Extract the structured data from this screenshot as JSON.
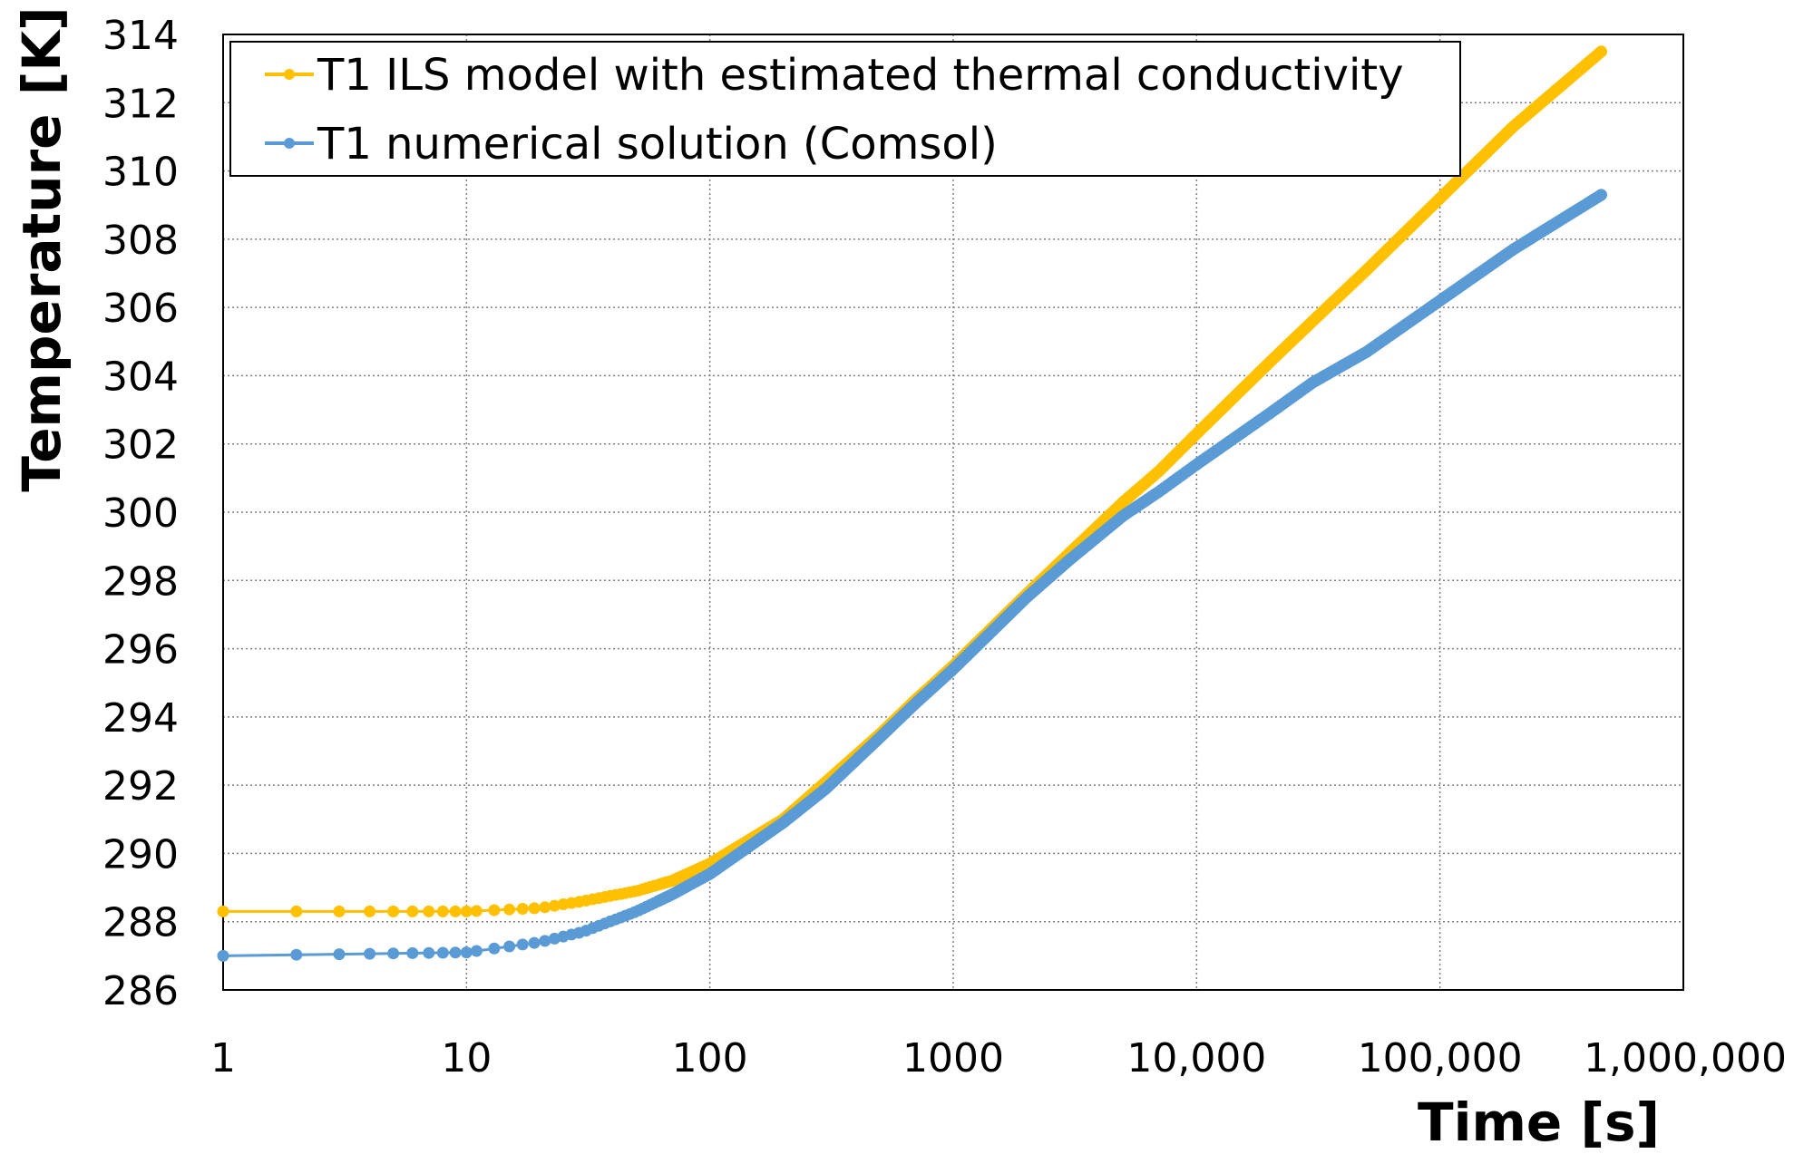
{
  "chart_data": {
    "type": "line",
    "xscale": "log",
    "xlabel": "Time [s]",
    "ylabel": "Temperature [K]",
    "xlim": [
      1,
      1000000
    ],
    "ylim": [
      286,
      314
    ],
    "grid": true,
    "legend_position": "top-left",
    "x_ticks": [
      {
        "value": 1,
        "label": "1"
      },
      {
        "value": 10,
        "label": "10"
      },
      {
        "value": 100,
        "label": "100"
      },
      {
        "value": 1000,
        "label": "1000"
      },
      {
        "value": 10000,
        "label": "10,000"
      },
      {
        "value": 100000,
        "label": "100,000"
      },
      {
        "value": 1000000,
        "label": "1,000,000"
      }
    ],
    "y_ticks": [
      {
        "value": 286,
        "label": "286"
      },
      {
        "value": 288,
        "label": "288"
      },
      {
        "value": 290,
        "label": "290"
      },
      {
        "value": 292,
        "label": "292"
      },
      {
        "value": 294,
        "label": "294"
      },
      {
        "value": 296,
        "label": "296"
      },
      {
        "value": 298,
        "label": "298"
      },
      {
        "value": 300,
        "label": "300"
      },
      {
        "value": 302,
        "label": "302"
      },
      {
        "value": 304,
        "label": "304"
      },
      {
        "value": 306,
        "label": "306"
      },
      {
        "value": 308,
        "label": "308"
      },
      {
        "value": 310,
        "label": "310"
      },
      {
        "value": 312,
        "label": "312"
      },
      {
        "value": 314,
        "label": "314"
      }
    ],
    "series": [
      {
        "name": "T1 ILS model with estimated thermal conductivity",
        "color": "#FFC000",
        "points": [
          [
            1,
            288.3
          ],
          [
            10,
            288.3
          ],
          [
            20,
            288.4
          ],
          [
            30,
            288.6
          ],
          [
            50,
            288.9
          ],
          [
            70,
            289.2
          ],
          [
            100,
            289.7
          ],
          [
            200,
            291.0
          ],
          [
            300,
            292.1
          ],
          [
            500,
            293.5
          ],
          [
            700,
            294.5
          ],
          [
            1000,
            295.5
          ],
          [
            2000,
            297.6
          ],
          [
            3000,
            298.8
          ],
          [
            5000,
            300.3
          ],
          [
            7000,
            301.2
          ],
          [
            10000,
            302.3
          ],
          [
            20000,
            304.4
          ],
          [
            30000,
            305.6
          ],
          [
            50000,
            307.1
          ],
          [
            100000,
            309.2
          ],
          [
            200000,
            311.3
          ],
          [
            460000,
            313.5
          ]
        ]
      },
      {
        "name": "T1 numerical solution (Comsol)",
        "color": "#5B9BD5",
        "points": [
          [
            1,
            287.0
          ],
          [
            10,
            287.1
          ],
          [
            20,
            287.4
          ],
          [
            30,
            287.7
          ],
          [
            50,
            288.3
          ],
          [
            70,
            288.8
          ],
          [
            100,
            289.4
          ],
          [
            200,
            290.9
          ],
          [
            300,
            291.9
          ],
          [
            500,
            293.4
          ],
          [
            700,
            294.4
          ],
          [
            1000,
            295.4
          ],
          [
            2000,
            297.5
          ],
          [
            3000,
            298.6
          ],
          [
            5000,
            299.9
          ],
          [
            7000,
            300.6
          ],
          [
            10000,
            301.4
          ],
          [
            20000,
            302.9
          ],
          [
            30000,
            303.8
          ],
          [
            50000,
            304.7
          ],
          [
            100000,
            306.2
          ],
          [
            200000,
            307.7
          ],
          [
            460000,
            309.3
          ]
        ]
      }
    ]
  }
}
